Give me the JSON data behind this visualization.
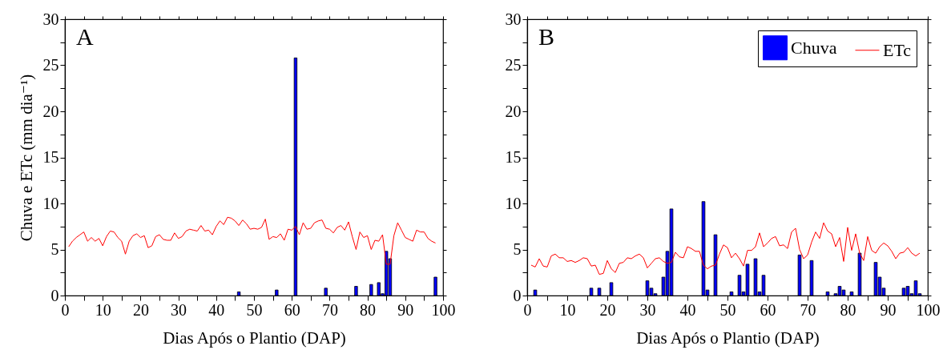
{
  "chart_data": [
    {
      "type": "bar",
      "xlabel": "Dias Após o Plantio (DAP)",
      "ylabel": "Chuva e ETc (mm dia⁻¹)",
      "annotations": [
        "A"
      ],
      "xlim": [
        0,
        100
      ],
      "xticks": [
        0,
        {
          "value": 5,
          "label": null
        },
        10,
        {
          "value": 15,
          "label": null
        },
        20,
        {
          "value": 25,
          "label": null
        },
        30,
        {
          "value": 35,
          "label": null
        },
        40,
        {
          "value": 45,
          "label": null
        },
        50,
        {
          "value": 55,
          "label": null
        },
        60,
        {
          "value": 65,
          "label": null
        },
        70,
        {
          "value": 75,
          "label": null
        },
        80,
        {
          "value": 85,
          "label": null
        },
        90,
        {
          "value": 95,
          "label": null
        },
        100
      ],
      "ylim": [
        0,
        30
      ],
      "yticks": [
        0,
        {
          "value": 2.5,
          "label": null
        },
        5,
        {
          "value": 7.5,
          "label": null
        },
        10,
        {
          "value": 12.5,
          "label": null
        },
        15,
        {
          "value": 17.5,
          "label": null
        },
        20,
        {
          "value": 22.5,
          "label": null
        },
        25,
        {
          "value": 27.5,
          "label": null
        },
        30
      ],
      "series": [
        {
          "color": "#0000ff",
          "x": [
            46,
            56,
            61,
            69,
            77,
            81,
            83,
            84,
            85,
            86,
            98
          ],
          "values": [
            0.4,
            0.6,
            25.8,
            0.8,
            1.0,
            1.2,
            1.4,
            0.2,
            4.8,
            4.0,
            2.0
          ]
        },
        {
          "type": "line",
          "color": "#ff0000",
          "x": [
            1,
            2,
            3,
            4,
            5,
            6,
            7,
            8,
            9,
            10,
            11,
            12,
            13,
            14,
            15,
            16,
            17,
            18,
            19,
            20,
            21,
            22,
            23,
            24,
            25,
            26,
            27,
            28,
            29,
            30,
            31,
            32,
            33,
            34,
            35,
            36,
            37,
            38,
            39,
            40,
            41,
            42,
            43,
            44,
            45,
            46,
            47,
            48,
            49,
            50,
            51,
            52,
            53,
            54,
            55,
            56,
            57,
            58,
            59,
            60,
            61,
            62,
            63,
            64,
            65,
            66,
            67,
            68,
            69,
            70,
            71,
            72,
            73,
            74,
            75,
            76,
            77,
            78,
            79,
            80,
            81,
            82,
            83,
            84,
            85,
            86,
            87,
            88,
            89,
            90,
            91,
            92,
            93,
            94,
            95,
            96,
            97,
            98
          ],
          "values": [
            5.3,
            5.9,
            6.3,
            6.6,
            6.9,
            5.9,
            6.3,
            5.9,
            6.2,
            5.4,
            6.4,
            7.0,
            6.9,
            6.3,
            5.9,
            4.5,
            5.9,
            6.5,
            6.7,
            6.3,
            6.5,
            5.2,
            5.4,
            6.4,
            6.6,
            6.1,
            6.0,
            6.0,
            6.8,
            6.2,
            6.4,
            7.0,
            7.2,
            7.1,
            7.0,
            7.6,
            7.0,
            7.1,
            6.6,
            7.5,
            8.1,
            7.7,
            8.5,
            8.4,
            8.1,
            7.6,
            8.2,
            7.8,
            7.2,
            7.3,
            7.2,
            7.4,
            8.3,
            6.1,
            6.4,
            6.3,
            6.7,
            6.0,
            7.2,
            7.1,
            7.5,
            6.6,
            7.9,
            7.2,
            7.3,
            7.9,
            8.1,
            8.2,
            7.3,
            7.2,
            6.8,
            7.4,
            7.6,
            7.1,
            8.0,
            6.4,
            5.0,
            6.9,
            6.3,
            6.5,
            5.0,
            6.0,
            5.9,
            6.6,
            3.4,
            3.4,
            6.5,
            7.9,
            7.1,
            6.3,
            6.1,
            5.9,
            7.1,
            6.9,
            6.9,
            6.2,
            5.9,
            5.7
          ]
        }
      ]
    },
    {
      "type": "bar",
      "xlabel": "Dias Após o Plantio (DAP)",
      "annotations": [
        "B"
      ],
      "legend": "top right",
      "xlim": [
        0,
        100
      ],
      "xticks": [
        0,
        {
          "value": 5,
          "label": null
        },
        10,
        {
          "value": 15,
          "label": null
        },
        20,
        {
          "value": 25,
          "label": null
        },
        30,
        {
          "value": 35,
          "label": null
        },
        40,
        {
          "value": 45,
          "label": null
        },
        50,
        {
          "value": 55,
          "label": null
        },
        60,
        {
          "value": 65,
          "label": null
        },
        70,
        {
          "value": 75,
          "label": null
        },
        80,
        {
          "value": 85,
          "label": null
        },
        90,
        {
          "value": 95,
          "label": null
        },
        100
      ],
      "ylim": [
        0,
        30
      ],
      "yticks": [
        0,
        {
          "value": 2.5,
          "label": null
        },
        5,
        {
          "value": 7.5,
          "label": null
        },
        10,
        {
          "value": 12.5,
          "label": null
        },
        15,
        {
          "value": 17.5,
          "label": null
        },
        20,
        {
          "value": 22.5,
          "label": null
        },
        25,
        {
          "value": 27.5,
          "label": null
        },
        30
      ],
      "series": [
        {
          "name": "Chuva",
          "color": "#0000ff",
          "x": [
            2,
            16,
            18,
            21,
            30,
            31,
            32,
            34,
            35,
            36,
            44,
            45,
            47,
            51,
            53,
            54,
            55,
            57,
            58,
            59,
            68,
            71,
            75,
            77,
            78,
            79,
            81,
            83,
            87,
            88,
            89,
            94,
            95,
            96,
            97,
            98
          ],
          "values": [
            0.6,
            0.8,
            0.8,
            1.4,
            1.6,
            0.8,
            0.2,
            2.0,
            4.8,
            9.4,
            10.2,
            0.6,
            6.6,
            0.4,
            2.2,
            0.4,
            3.4,
            4.0,
            0.4,
            2.2,
            4.4,
            3.8,
            0.4,
            0.2,
            1.0,
            0.6,
            0.4,
            4.6,
            3.6,
            2.0,
            0.8,
            0.8,
            1.0,
            0.2,
            1.6,
            0.2
          ]
        },
        {
          "type": "line",
          "name": "ETc",
          "color": "#ff0000",
          "x": [
            1,
            2,
            3,
            4,
            5,
            6,
            7,
            8,
            9,
            10,
            11,
            12,
            13,
            14,
            15,
            16,
            17,
            18,
            19,
            20,
            21,
            22,
            23,
            24,
            25,
            26,
            27,
            28,
            29,
            30,
            31,
            32,
            33,
            34,
            35,
            36,
            37,
            38,
            39,
            40,
            41,
            42,
            43,
            44,
            45,
            46,
            47,
            48,
            49,
            50,
            51,
            52,
            53,
            54,
            55,
            56,
            57,
            58,
            59,
            60,
            61,
            62,
            63,
            64,
            65,
            66,
            67,
            68,
            69,
            70,
            71,
            72,
            73,
            74,
            75,
            76,
            77,
            78,
            79,
            80,
            81,
            82,
            83,
            84,
            85,
            86,
            87,
            88,
            89,
            90,
            91,
            92,
            93,
            94,
            95,
            96,
            97,
            98
          ],
          "values": [
            3.3,
            3.1,
            4.0,
            3.2,
            3.1,
            4.3,
            4.5,
            4.1,
            4.1,
            3.7,
            3.8,
            3.6,
            3.8,
            4.1,
            4.0,
            3.2,
            3.3,
            2.3,
            2.4,
            3.8,
            2.9,
            2.5,
            3.5,
            3.6,
            4.1,
            4.0,
            4.3,
            4.5,
            4.1,
            3.0,
            3.5,
            4.0,
            4.1,
            3.7,
            3.5,
            3.6,
            4.7,
            4.2,
            4.1,
            5.3,
            5.1,
            4.8,
            4.8,
            3.3,
            2.9,
            3.2,
            3.3,
            4.5,
            5.5,
            5.2,
            4.1,
            4.6,
            4.0,
            3.2,
            4.9,
            4.9,
            5.3,
            6.8,
            5.3,
            5.7,
            6.2,
            6.4,
            5.4,
            5.5,
            5.1,
            6.9,
            7.3,
            5.0,
            4.0,
            4.4,
            5.8,
            6.9,
            6.2,
            7.9,
            7.0,
            6.7,
            5.3,
            6.3,
            3.7,
            7.4,
            4.9,
            6.7,
            4.6,
            3.8,
            6.4,
            4.9,
            4.6,
            5.3,
            5.7,
            5.4,
            4.8,
            4.0,
            4.6,
            4.7,
            5.2,
            4.6,
            4.3,
            4.6
          ]
        }
      ]
    }
  ]
}
